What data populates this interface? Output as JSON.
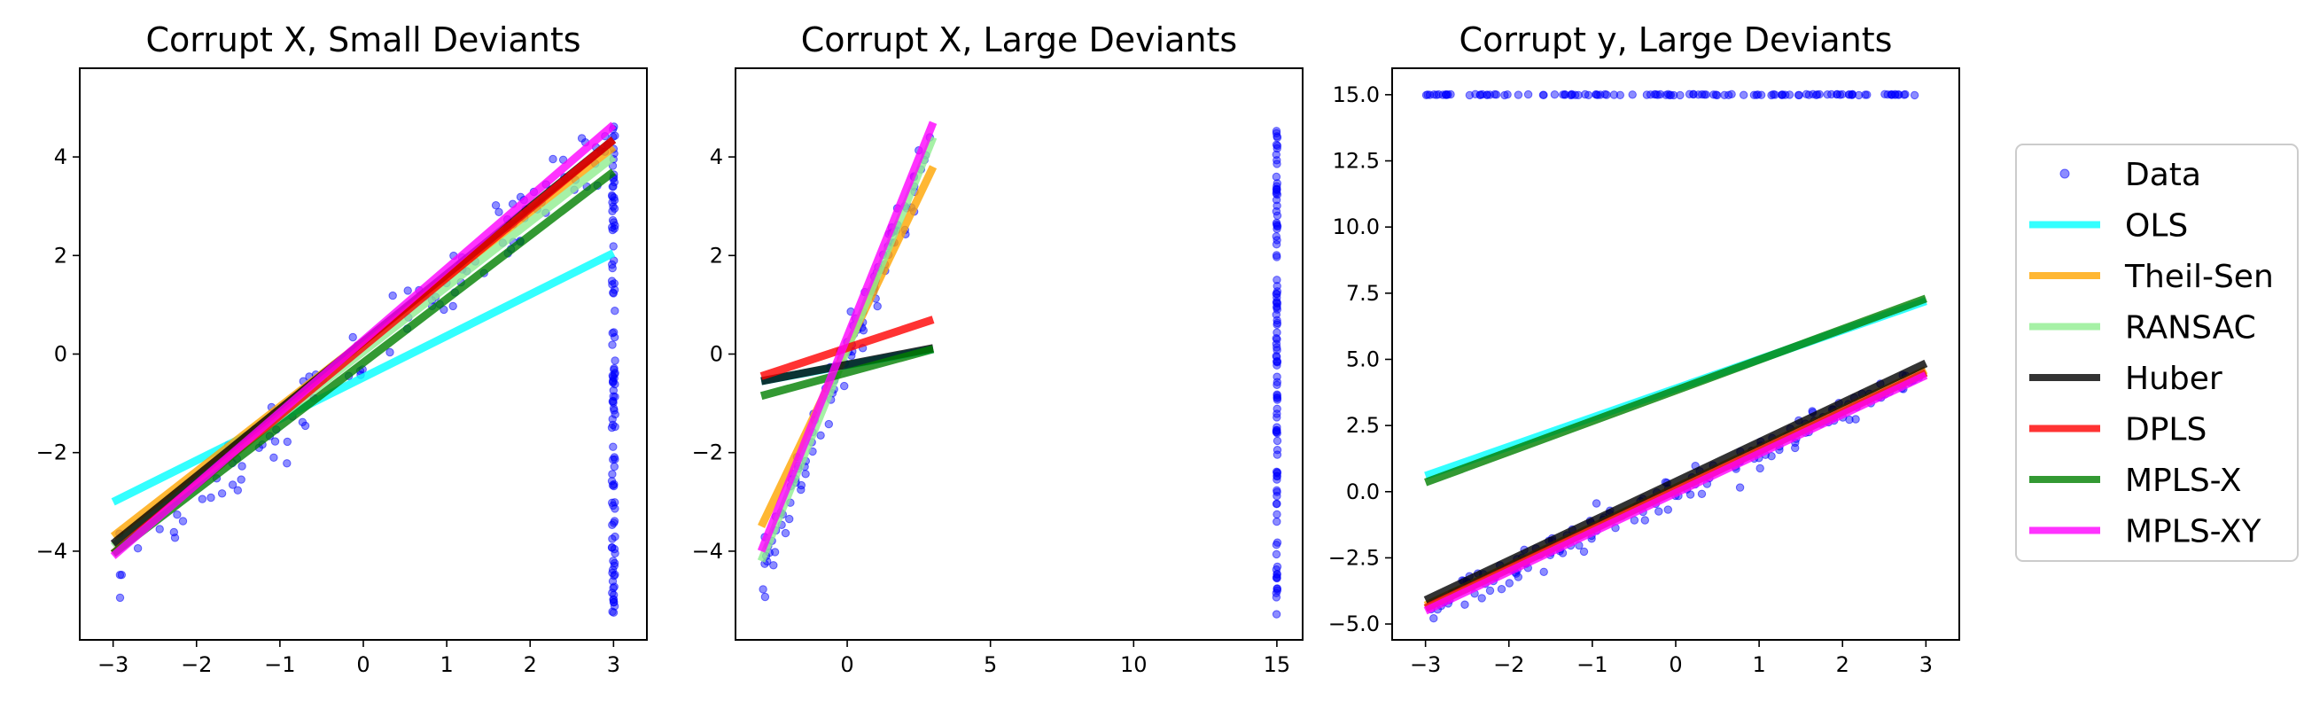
{
  "chart_data": [
    {
      "type": "scatter",
      "title": "Corrupt X, Small Deviants",
      "xlabel": "",
      "ylabel": "",
      "xlim": [
        -3.4,
        3.4
      ],
      "ylim": [
        -5.8,
        5.8
      ],
      "xticks": [
        -3,
        -2,
        -1,
        0,
        1,
        2,
        3
      ],
      "xtick_labels": [
        "−3",
        "−2",
        "−1",
        "0",
        "1",
        "2",
        "3"
      ],
      "yticks": [
        -4,
        -2,
        0,
        2,
        4
      ],
      "ytick_labels": [
        "−4",
        "−2",
        "0",
        "2",
        "4"
      ],
      "data_points": {
        "clean_line": {
          "x_range": [
            -2.95,
            2.95
          ],
          "y_intercept": 0,
          "slope": 1.5,
          "noise": 0.35,
          "count": 110
        },
        "outliers": {
          "x": 3.0,
          "y_range": [
            -5.3,
            4.8
          ],
          "count": 110
        }
      },
      "fit_lines": [
        {
          "name": "OLS",
          "x": [
            -3,
            3
          ],
          "y": [
            -3.0,
            2.05
          ]
        },
        {
          "name": "Theil-Sen",
          "x": [
            -3,
            3
          ],
          "y": [
            -3.7,
            4.2
          ]
        },
        {
          "name": "RANSAC",
          "x": [
            -3,
            3
          ],
          "y": [
            -3.9,
            4.0
          ]
        },
        {
          "name": "Huber",
          "x": [
            -3,
            3
          ],
          "y": [
            -3.85,
            4.35
          ]
        },
        {
          "name": "DPLS",
          "x": [
            -3,
            3
          ],
          "y": [
            -4.05,
            4.35
          ]
        },
        {
          "name": "MPLS-X",
          "x": [
            -3,
            3
          ],
          "y": [
            -4.05,
            3.7
          ]
        },
        {
          "name": "MPLS-XY",
          "x": [
            -3,
            3
          ],
          "y": [
            -4.1,
            4.65
          ]
        }
      ]
    },
    {
      "type": "scatter",
      "title": "Corrupt X, Large Deviants",
      "xlabel": "",
      "ylabel": "",
      "xlim": [
        -3.9,
        15.9
      ],
      "ylim": [
        -5.8,
        5.8
      ],
      "xticks": [
        0,
        5,
        10,
        15
      ],
      "xtick_labels": [
        "0",
        "5",
        "10",
        "15"
      ],
      "yticks": [
        -4,
        -2,
        0,
        2,
        4
      ],
      "ytick_labels": [
        "−4",
        "−2",
        "0",
        "2",
        "4"
      ],
      "data_points": {
        "clean_line": {
          "x_range": [
            -2.95,
            2.95
          ],
          "y_intercept": 0,
          "slope": 1.5,
          "noise": 0.3,
          "count": 110
        },
        "outliers": {
          "x": 15.0,
          "y_range": [
            -5.3,
            4.8
          ],
          "count": 110
        }
      },
      "fit_lines": [
        {
          "name": "OLS",
          "x": [
            -3,
            3
          ],
          "y": [
            -0.55,
            0.1
          ]
        },
        {
          "name": "Theil-Sen",
          "x": [
            -3,
            3
          ],
          "y": [
            -3.5,
            3.8
          ]
        },
        {
          "name": "RANSAC",
          "x": [
            -3,
            3
          ],
          "y": [
            -4.2,
            4.4
          ]
        },
        {
          "name": "Huber",
          "x": [
            -3,
            3
          ],
          "y": [
            -0.55,
            0.12
          ]
        },
        {
          "name": "DPLS",
          "x": [
            -3,
            3
          ],
          "y": [
            -0.45,
            0.7
          ]
        },
        {
          "name": "MPLS-X",
          "x": [
            -3,
            3
          ],
          "y": [
            -0.85,
            0.1
          ]
        },
        {
          "name": "MPLS-XY",
          "x": [
            -3,
            3
          ],
          "y": [
            -4.0,
            4.7
          ]
        }
      ]
    },
    {
      "type": "scatter",
      "title": "Corrupt y, Large Deviants",
      "xlabel": "",
      "ylabel": "",
      "xlim": [
        -3.4,
        3.4
      ],
      "ylim": [
        -5.6,
        16.0
      ],
      "xticks": [
        -3,
        -2,
        -1,
        0,
        1,
        2,
        3
      ],
      "xtick_labels": [
        "−3",
        "−2",
        "−1",
        "0",
        "1",
        "2",
        "3"
      ],
      "yticks": [
        -5,
        -2.5,
        0,
        2.5,
        5,
        7.5,
        10,
        12.5,
        15
      ],
      "ytick_labels": [
        "−5.0",
        "−2.5",
        "0.0",
        "2.5",
        "5.0",
        "7.5",
        "10.0",
        "12.5",
        "15.0"
      ],
      "data_points": {
        "clean_line": {
          "x_range": [
            -2.95,
            2.95
          ],
          "y_intercept": 0,
          "slope": 1.5,
          "noise": 0.3,
          "count": 170
        },
        "outliers": {
          "y": 15.0,
          "x_range": [
            -3.0,
            2.95
          ],
          "count": 120
        }
      },
      "fit_lines": [
        {
          "name": "OLS",
          "x": [
            -3,
            3
          ],
          "y": [
            0.6,
            7.2
          ]
        },
        {
          "name": "Theil-Sen",
          "x": [
            -3,
            3
          ],
          "y": [
            -4.3,
            4.6
          ]
        },
        {
          "name": "RANSAC",
          "x": [
            -3,
            3
          ],
          "y": [
            -4.4,
            4.5
          ]
        },
        {
          "name": "Huber",
          "x": [
            -3,
            3
          ],
          "y": [
            -4.1,
            4.85
          ]
        },
        {
          "name": "DPLS",
          "x": [
            -3,
            3
          ],
          "y": [
            -4.4,
            4.5
          ]
        },
        {
          "name": "MPLS-X",
          "x": [
            -3,
            3
          ],
          "y": [
            0.35,
            7.3
          ]
        },
        {
          "name": "MPLS-XY",
          "x": [
            -3,
            3
          ],
          "y": [
            -4.5,
            4.4
          ]
        }
      ]
    }
  ],
  "legend": {
    "placement": "right",
    "entries": [
      {
        "name": "Data",
        "kind": "marker",
        "color": "#0000ff"
      },
      {
        "name": "OLS",
        "kind": "line",
        "color": "#00ffff"
      },
      {
        "name": "Theil-Sen",
        "kind": "line",
        "color": "#ffa500"
      },
      {
        "name": "RANSAC",
        "kind": "line",
        "color": "#90ee90"
      },
      {
        "name": "Huber",
        "kind": "line",
        "color": "#000000"
      },
      {
        "name": "DPLS",
        "kind": "line",
        "color": "#ff0000"
      },
      {
        "name": "MPLS-X",
        "kind": "line",
        "color": "#008000"
      },
      {
        "name": "MPLS-XY",
        "kind": "line",
        "color": "#ff00ff"
      }
    ]
  },
  "colors": {
    "OLS": "#00ffff",
    "Theil-Sen": "#ffa500",
    "RANSAC": "#90ee90",
    "Huber": "#000000",
    "DPLS": "#ff0000",
    "MPLS-X": "#008000",
    "MPLS-XY": "#ff00ff",
    "Data": "#0000ff"
  }
}
